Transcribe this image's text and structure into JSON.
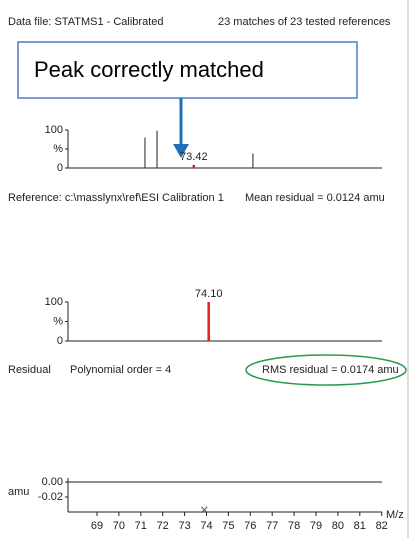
{
  "header": {
    "data_file": "Data file: STATMS1 - Calibrated",
    "matches": "23 matches of 23 tested references"
  },
  "callout": "Peak correctly matched",
  "panels": [
    {
      "yticks": [
        {
          "value": 100,
          "label": "100"
        },
        {
          "value": 50,
          "label": "%"
        },
        {
          "value": 0,
          "label": "0"
        }
      ],
      "peaks": [
        {
          "x": 71.19,
          "height": 80,
          "color": "#444444"
        },
        {
          "x": 71.74,
          "height": 98,
          "color": "#444444"
        },
        {
          "x": 73.42,
          "height": 8,
          "color": "#e02020",
          "label": "73.42"
        },
        {
          "x": 76.12,
          "height": 38,
          "color": "#444444"
        }
      ]
    },
    {
      "yticks": [
        {
          "value": 100,
          "label": "100"
        },
        {
          "value": 50,
          "label": "%"
        },
        {
          "value": 0,
          "label": "0"
        }
      ],
      "peaks": [
        {
          "x": 74.1,
          "height": 100,
          "color": "#e02020",
          "label": "74.10"
        }
      ]
    }
  ],
  "reference": "Reference: c:\\masslynx\\ref\\ESI Calibration 1",
  "mean_residual": "Mean residual = 0.0124 amu",
  "residual": {
    "title": "Residual",
    "order": "Polynomial order = 4",
    "rms": "RMS residual = 0.0174 amu",
    "unit": "amu",
    "yticks": [
      {
        "value": 0,
        "label": "0.00"
      },
      {
        "value": -0.02,
        "label": "-0.02"
      }
    ],
    "points": [
      {
        "x": 73.9,
        "value": -0.037
      }
    ]
  },
  "xaxis": {
    "label": "M/z",
    "xticks": [
      69,
      70,
      71,
      72,
      73,
      74,
      75,
      76,
      77,
      78,
      79,
      80,
      81,
      82
    ]
  }
}
